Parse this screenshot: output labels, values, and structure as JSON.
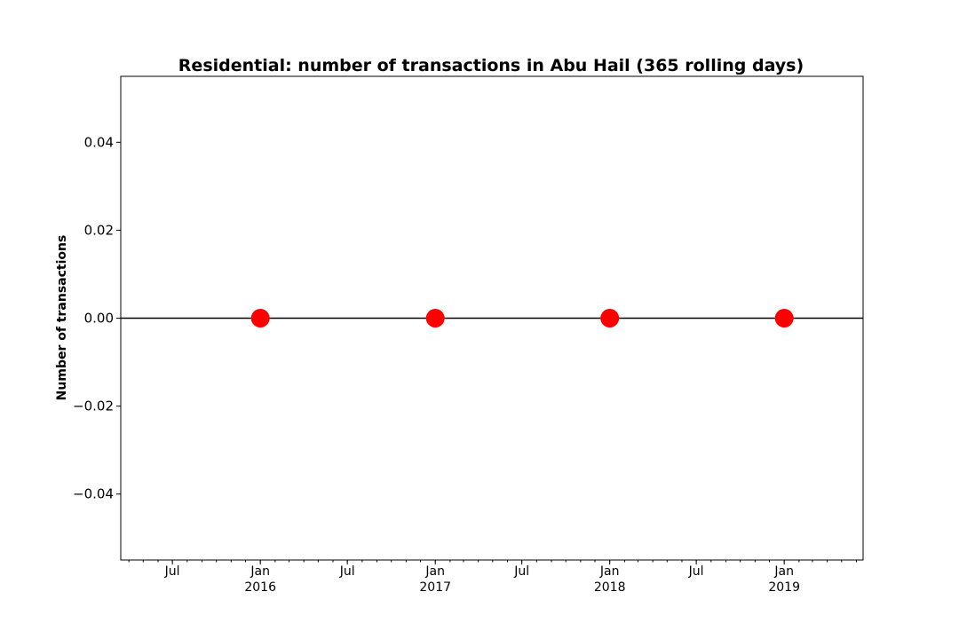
{
  "chart_data": {
    "type": "line",
    "title": "Residential: number of transactions in Abu Hail (365 rolling days)",
    "xlabel": "",
    "ylabel": "Number of transactions",
    "ylim": [
      -0.055,
      0.055
    ],
    "xlim": [
      "2015-03-15",
      "2019-06-15"
    ],
    "yticks": [
      {
        "value": 0.04,
        "label": "0.04"
      },
      {
        "value": 0.02,
        "label": "0.02"
      },
      {
        "value": 0.0,
        "label": "0.00"
      },
      {
        "value": -0.02,
        "label": "−0.02"
      },
      {
        "value": -0.04,
        "label": "−0.04"
      }
    ],
    "xticks": [
      {
        "date": "2015-07-01",
        "label": "Jul",
        "sublabel": ""
      },
      {
        "date": "2016-01-01",
        "label": "Jan",
        "sublabel": "2016"
      },
      {
        "date": "2016-07-01",
        "label": "Jul",
        "sublabel": ""
      },
      {
        "date": "2017-01-01",
        "label": "Jan",
        "sublabel": "2017"
      },
      {
        "date": "2017-07-01",
        "label": "Jul",
        "sublabel": ""
      },
      {
        "date": "2018-01-01",
        "label": "Jan",
        "sublabel": "2018"
      },
      {
        "date": "2018-07-01",
        "label": "Jul",
        "sublabel": ""
      },
      {
        "date": "2019-01-01",
        "label": "Jan",
        "sublabel": "2019"
      }
    ],
    "series": [
      {
        "line_color": "#000000",
        "marker_color": "#ff0000",
        "x": [
          "2016-01-01",
          "2017-01-01",
          "2018-01-01",
          "2019-01-01"
        ],
        "y": [
          0,
          0,
          0,
          0
        ]
      }
    ],
    "grid": false,
    "legend": "none"
  }
}
